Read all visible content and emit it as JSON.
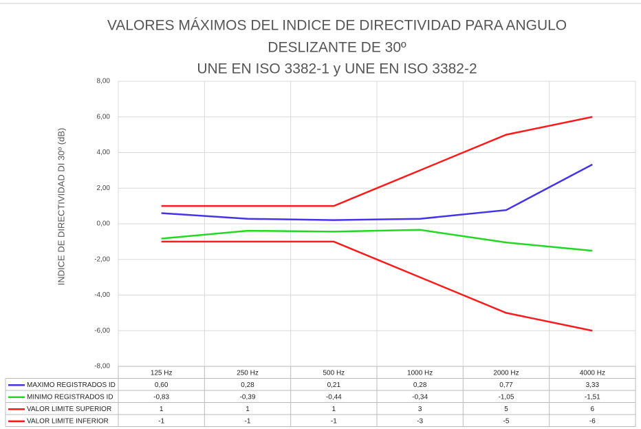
{
  "chart_data": {
    "type": "line",
    "title": [
      "VALORES MÁXIMOS DEL INDICE DE DIRECTIVIDAD PARA ANGULO",
      "DESLIZANTE DE 30º",
      "UNE EN ISO 3382-1 y UNE EN ISO 3382-2"
    ],
    "y_label": "INDICE DE DIRECTIVIDAD DI 30º (dB)",
    "categories": [
      "125 Hz",
      "250 Hz",
      "500 Hz",
      "1000 Hz",
      "2000 Hz",
      "4000 Hz"
    ],
    "series": [
      {
        "name": "MAXIMO REGISTRADOS ID",
        "color": "#4433e8",
        "values": [
          0.6,
          0.28,
          0.21,
          0.28,
          0.77,
          3.33
        ],
        "value_labels": [
          "0,60",
          "0,28",
          "0,21",
          "0,28",
          "0,77",
          "3,33"
        ]
      },
      {
        "name": "MINIMO REGISTRADOS ID",
        "color": "#22d822",
        "values": [
          -0.83,
          -0.39,
          -0.44,
          -0.34,
          -1.05,
          -1.51
        ],
        "value_labels": [
          "-0,83",
          "-0,39",
          "-0,44",
          "-0,34",
          "-1,05",
          "-1,51"
        ]
      },
      {
        "name": "VALOR LIMITE SUPERIOR",
        "color": "#ff1a1a",
        "values": [
          1,
          1,
          1,
          3,
          5,
          6
        ]
      },
      {
        "name": "VALOR LIMITE INFERIOR",
        "color": "#ff1a1a",
        "values": [
          -1,
          -1,
          -1,
          -3,
          -5,
          -6
        ]
      }
    ],
    "ylim": [
      -8,
      8
    ],
    "yticks": [
      {
        "value": -8,
        "label": "-8,00"
      },
      {
        "value": -6,
        "label": "-6,00"
      },
      {
        "value": -4,
        "label": "-4,00"
      },
      {
        "value": -2,
        "label": "-2,00"
      },
      {
        "value": 0,
        "label": "0,00"
      },
      {
        "value": 2,
        "label": "2,00"
      },
      {
        "value": 4,
        "label": "4,00"
      },
      {
        "value": 6,
        "label": "6,00"
      },
      {
        "value": 8,
        "label": "8,00"
      }
    ],
    "grid": true
  }
}
